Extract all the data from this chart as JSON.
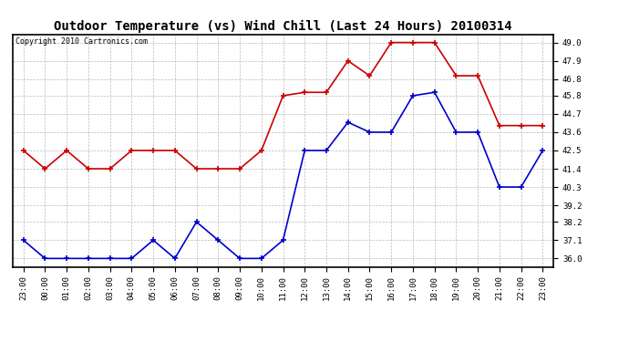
{
  "title": "Outdoor Temperature (vs) Wind Chill (Last 24 Hours) 20100314",
  "copyright": "Copyright 2010 Cartronics.com",
  "x_labels": [
    "23:00",
    "00:00",
    "01:00",
    "02:00",
    "03:00",
    "04:00",
    "05:00",
    "06:00",
    "07:00",
    "08:00",
    "09:00",
    "10:00",
    "11:00",
    "12:00",
    "13:00",
    "14:00",
    "15:00",
    "16:00",
    "17:00",
    "18:00",
    "19:00",
    "20:00",
    "21:00",
    "22:00",
    "23:00"
  ],
  "red_values": [
    42.5,
    41.4,
    42.5,
    41.4,
    41.4,
    42.5,
    42.5,
    42.5,
    41.4,
    41.4,
    41.4,
    42.5,
    45.8,
    46.0,
    46.0,
    47.9,
    47.0,
    49.0,
    49.0,
    49.0,
    47.0,
    47.0,
    44.0,
    44.0,
    44.0
  ],
  "blue_values": [
    37.1,
    36.0,
    36.0,
    36.0,
    36.0,
    36.0,
    37.1,
    36.0,
    38.2,
    37.1,
    36.0,
    36.0,
    37.1,
    42.5,
    42.5,
    44.2,
    43.6,
    43.6,
    45.8,
    46.0,
    43.6,
    43.6,
    40.3,
    40.3,
    42.5
  ],
  "y_ticks": [
    36.0,
    37.1,
    38.2,
    39.2,
    40.3,
    41.4,
    42.5,
    43.6,
    44.7,
    45.8,
    46.8,
    47.9,
    49.0
  ],
  "ylim": [
    35.5,
    49.5
  ],
  "red_color": "#cc0000",
  "blue_color": "#0000cc",
  "bg_color": "#ffffff",
  "grid_color": "#bbbbbb",
  "title_fontsize": 10,
  "tick_fontsize": 6.5,
  "copyright_fontsize": 6
}
